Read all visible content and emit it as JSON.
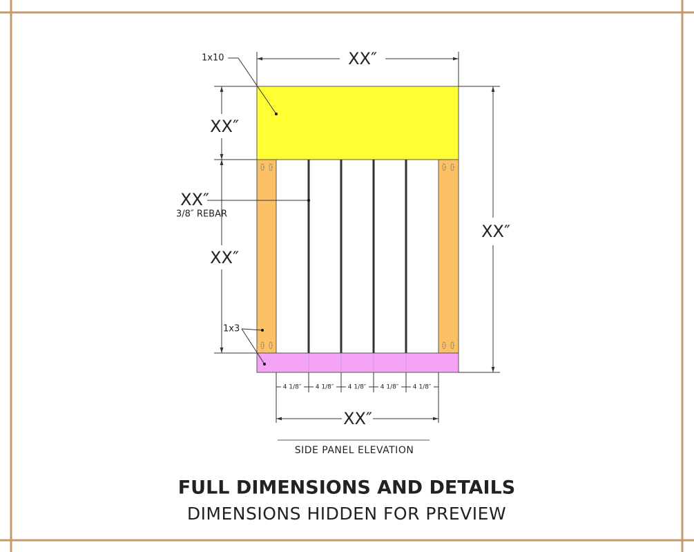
{
  "dimensions": {
    "top_width": "XX″",
    "top_height": "XX″",
    "post_height": "XX″",
    "total_height": "XX″",
    "inner_width": "XX″",
    "rebar_length": "XX″",
    "spacings": [
      "4 1/8″",
      "4 1/8″",
      "4 1/8″",
      "4 1/8″",
      "4 1/8″"
    ]
  },
  "parts": {
    "top": "1x10",
    "rebar": "3/8″ REBAR",
    "frame": "1x3"
  },
  "caption": "SIDE PANEL ELEVATION",
  "footer": {
    "title": "FULL DIMENSIONS AND DETAILS",
    "subtitle": "DIMENSIONS HIDDEN FOR PREVIEW"
  }
}
